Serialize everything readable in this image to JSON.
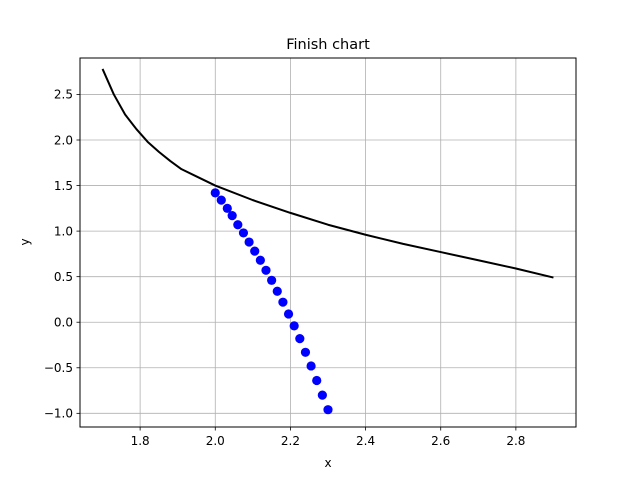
{
  "chart_data": {
    "type": "line",
    "title": "Finish chart",
    "xlabel": "x",
    "ylabel": "y",
    "xlim": [
      1.64,
      2.96
    ],
    "ylim": [
      -1.15,
      2.9
    ],
    "grid": true,
    "x_ticks": [
      1.8,
      2.0,
      2.2,
      2.4,
      2.6,
      2.8
    ],
    "y_ticks": [
      -1.0,
      -0.5,
      0.0,
      0.5,
      1.0,
      1.5,
      2.0,
      2.5
    ],
    "x_tick_labels": [
      "1.8",
      "2.0",
      "2.2",
      "2.4",
      "2.6",
      "2.8"
    ],
    "y_tick_labels": [
      "−1.0",
      "−0.5",
      "0.0",
      "0.5",
      "1.0",
      "1.5",
      "2.0",
      "2.5"
    ],
    "series": [
      {
        "style": "line",
        "color": "#000000",
        "points": [
          [
            1.7,
            2.78
          ],
          [
            1.73,
            2.5
          ],
          [
            1.76,
            2.28
          ],
          [
            1.79,
            2.12
          ],
          [
            1.82,
            1.98
          ],
          [
            1.85,
            1.87
          ],
          [
            1.88,
            1.77
          ],
          [
            1.91,
            1.68
          ],
          [
            1.95,
            1.6
          ],
          [
            2.0,
            1.5
          ],
          [
            2.1,
            1.34
          ],
          [
            2.2,
            1.2
          ],
          [
            2.3,
            1.07
          ],
          [
            2.4,
            0.96
          ],
          [
            2.5,
            0.86
          ],
          [
            2.6,
            0.77
          ],
          [
            2.7,
            0.68
          ],
          [
            2.8,
            0.59
          ],
          [
            2.9,
            0.49
          ]
        ]
      },
      {
        "style": "markers",
        "color": "#0000ff",
        "points": [
          [
            2.0,
            1.42
          ],
          [
            2.016,
            1.34
          ],
          [
            2.032,
            1.25
          ],
          [
            2.045,
            1.17
          ],
          [
            2.06,
            1.07
          ],
          [
            2.075,
            0.98
          ],
          [
            2.09,
            0.88
          ],
          [
            2.105,
            0.78
          ],
          [
            2.12,
            0.68
          ],
          [
            2.135,
            0.57
          ],
          [
            2.15,
            0.46
          ],
          [
            2.165,
            0.34
          ],
          [
            2.18,
            0.22
          ],
          [
            2.195,
            0.09
          ],
          [
            2.21,
            -0.04
          ],
          [
            2.225,
            -0.18
          ],
          [
            2.24,
            -0.33
          ],
          [
            2.255,
            -0.48
          ],
          [
            2.27,
            -0.64
          ],
          [
            2.285,
            -0.8
          ],
          [
            2.3,
            -0.96
          ]
        ]
      }
    ]
  }
}
